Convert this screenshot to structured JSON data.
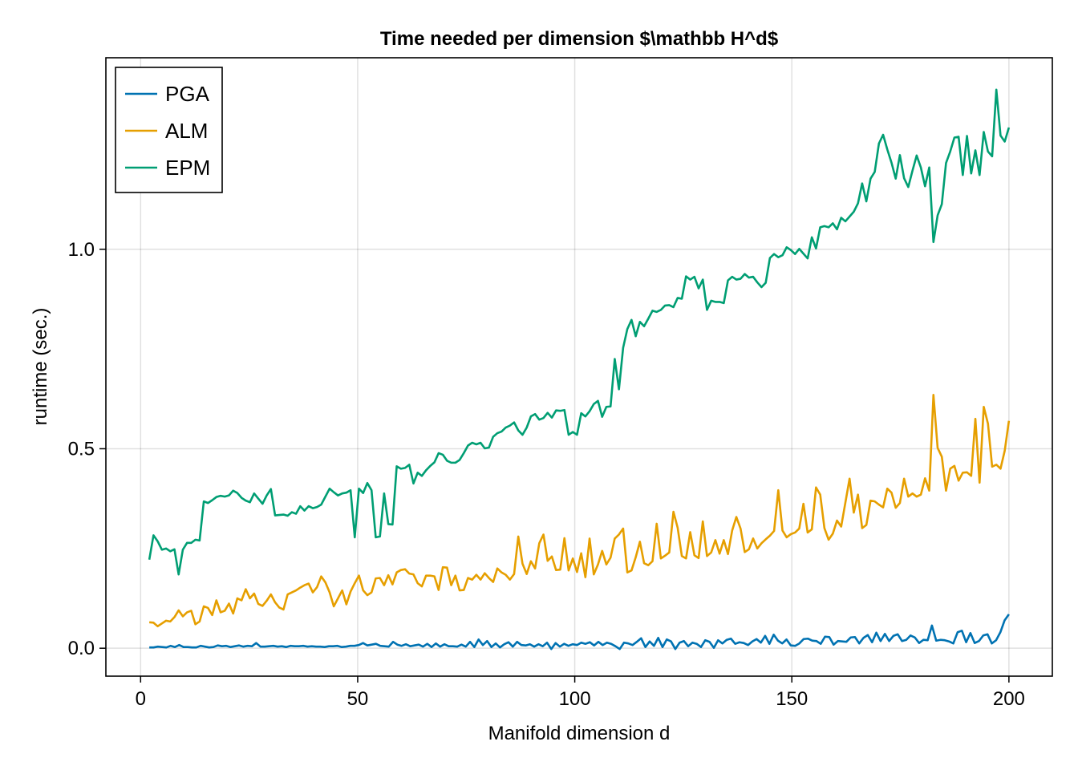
{
  "chart_data": {
    "type": "line",
    "title": "Time needed per dimension $\\mathbb H^d$",
    "xlabel": "Manifold dimension d",
    "ylabel": "runtime (sec.)",
    "xlim": [
      -8,
      210
    ],
    "ylim": [
      -0.07,
      1.48
    ],
    "xticks": [
      0,
      50,
      100,
      150,
      200
    ],
    "xtick_labels": [
      "0",
      "50",
      "100",
      "150",
      "200"
    ],
    "yticks": [
      0.0,
      0.5,
      1.0
    ],
    "ytick_labels": [
      "0.0",
      "0.5",
      "1.0"
    ],
    "grid": true,
    "legend_position": "top-left",
    "x_start": 2,
    "x_end": 200,
    "series": [
      {
        "name": "PGA",
        "color": "#0072b2",
        "values": [
          0.002,
          0.002,
          0.004,
          0.003,
          0.002,
          0.006,
          0.003,
          0.008,
          0.003,
          0.003,
          0.002,
          0.002,
          0.006,
          0.004,
          0.002,
          0.003,
          0.007,
          0.005,
          0.006,
          0.003,
          0.005,
          0.007,
          0.004,
          0.006,
          0.005,
          0.013,
          0.004,
          0.004,
          0.005,
          0.006,
          0.004,
          0.005,
          0.003,
          0.006,
          0.005,
          0.005,
          0.006,
          0.004,
          0.005,
          0.004,
          0.004,
          0.003,
          0.005,
          0.005,
          0.006,
          0.003,
          0.004,
          0.006,
          0.006,
          0.008,
          0.013,
          0.007,
          0.009,
          0.011,
          0.006,
          0.005,
          0.004,
          0.016,
          0.009,
          0.006,
          0.01,
          0.005,
          0.007,
          0.009,
          0.004,
          0.011,
          0.003,
          0.012,
          0.004,
          0.01,
          0.005,
          0.005,
          0.004,
          0.009,
          0.004,
          0.016,
          0.003,
          0.022,
          0.008,
          0.018,
          0.003,
          0.012,
          0.002,
          0.01,
          0.015,
          0.004,
          0.016,
          0.008,
          0.007,
          0.01,
          0.004,
          0.01,
          0.005,
          0.014,
          -0.002,
          0.013,
          0.004,
          0.011,
          0.006,
          0.01,
          0.008,
          0.014,
          0.011,
          0.015,
          0.007,
          0.016,
          0.008,
          0.014,
          0.011,
          0.005,
          -0.002,
          0.014,
          0.012,
          0.008,
          0.016,
          0.025,
          0.003,
          0.017,
          0.006,
          0.026,
          0.003,
          0.022,
          0.017,
          -0.002,
          0.014,
          0.018,
          0.005,
          0.014,
          0.011,
          0.003,
          0.02,
          0.016,
          0.001,
          0.02,
          0.012,
          0.021,
          0.024,
          0.011,
          0.015,
          0.013,
          0.008,
          0.017,
          0.023,
          0.014,
          0.031,
          0.011,
          0.034,
          0.019,
          0.012,
          0.022,
          0.007,
          0.006,
          0.012,
          0.023,
          0.024,
          0.019,
          0.018,
          0.011,
          0.029,
          0.028,
          0.009,
          0.018,
          0.017,
          0.016,
          0.027,
          0.028,
          0.012,
          0.026,
          0.033,
          0.015,
          0.039,
          0.018,
          0.036,
          0.018,
          0.031,
          0.035,
          0.018,
          0.021,
          0.032,
          0.027,
          0.013,
          0.021,
          0.02,
          0.057,
          0.019,
          0.021,
          0.02,
          0.017,
          0.012,
          0.04,
          0.044,
          0.015,
          0.038,
          0.013,
          0.018,
          0.032,
          0.035,
          0.012,
          0.02,
          0.04,
          0.07,
          0.085
        ]
      },
      {
        "name": "ALM",
        "color": "#e69f00",
        "values": [
          0.065,
          0.064,
          0.055,
          0.062,
          0.069,
          0.067,
          0.078,
          0.095,
          0.08,
          0.09,
          0.094,
          0.06,
          0.067,
          0.105,
          0.101,
          0.083,
          0.12,
          0.09,
          0.094,
          0.112,
          0.087,
          0.125,
          0.12,
          0.148,
          0.125,
          0.137,
          0.111,
          0.106,
          0.119,
          0.135,
          0.115,
          0.102,
          0.097,
          0.135,
          0.14,
          0.145,
          0.152,
          0.158,
          0.162,
          0.14,
          0.153,
          0.18,
          0.165,
          0.14,
          0.105,
          0.125,
          0.145,
          0.11,
          0.142,
          0.163,
          0.182,
          0.145,
          0.133,
          0.14,
          0.175,
          0.176,
          0.158,
          0.183,
          0.16,
          0.19,
          0.196,
          0.198,
          0.187,
          0.185,
          0.163,
          0.155,
          0.182,
          0.182,
          0.18,
          0.146,
          0.203,
          0.202,
          0.158,
          0.182,
          0.145,
          0.146,
          0.176,
          0.172,
          0.184,
          0.172,
          0.188,
          0.176,
          0.166,
          0.2,
          0.19,
          0.184,
          0.172,
          0.186,
          0.28,
          0.212,
          0.186,
          0.218,
          0.2,
          0.263,
          0.285,
          0.219,
          0.23,
          0.196,
          0.197,
          0.276,
          0.195,
          0.225,
          0.191,
          0.238,
          0.178,
          0.275,
          0.185,
          0.21,
          0.244,
          0.21,
          0.227,
          0.275,
          0.285,
          0.3,
          0.19,
          0.195,
          0.228,
          0.267,
          0.213,
          0.208,
          0.218,
          0.312,
          0.225,
          0.232,
          0.24,
          0.342,
          0.302,
          0.231,
          0.225,
          0.291,
          0.233,
          0.226,
          0.318,
          0.231,
          0.24,
          0.271,
          0.237,
          0.271,
          0.236,
          0.295,
          0.329,
          0.3,
          0.241,
          0.248,
          0.275,
          0.25,
          0.263,
          0.273,
          0.282,
          0.294,
          0.396,
          0.295,
          0.278,
          0.286,
          0.29,
          0.3,
          0.362,
          0.29,
          0.298,
          0.403,
          0.385,
          0.301,
          0.272,
          0.287,
          0.32,
          0.305,
          0.365,
          0.425,
          0.34,
          0.385,
          0.301,
          0.309,
          0.37,
          0.368,
          0.36,
          0.353,
          0.4,
          0.39,
          0.352,
          0.364,
          0.425,
          0.38,
          0.388,
          0.38,
          0.385,
          0.426,
          0.395,
          0.635,
          0.502,
          0.48,
          0.395,
          0.45,
          0.457,
          0.42,
          0.44,
          0.441,
          0.432,
          0.575,
          0.415,
          0.605,
          0.563,
          0.455,
          0.46,
          0.45,
          0.495,
          0.57
        ]
      },
      {
        "name": "EPM",
        "color": "#009e73",
        "values": [
          0.222,
          0.283,
          0.268,
          0.247,
          0.25,
          0.243,
          0.248,
          0.185,
          0.247,
          0.264,
          0.264,
          0.272,
          0.27,
          0.368,
          0.364,
          0.371,
          0.379,
          0.382,
          0.38,
          0.383,
          0.395,
          0.389,
          0.377,
          0.37,
          0.366,
          0.388,
          0.375,
          0.362,
          0.383,
          0.399,
          0.333,
          0.334,
          0.335,
          0.332,
          0.341,
          0.337,
          0.356,
          0.345,
          0.356,
          0.351,
          0.354,
          0.36,
          0.38,
          0.4,
          0.391,
          0.383,
          0.388,
          0.39,
          0.396,
          0.278,
          0.4,
          0.389,
          0.414,
          0.396,
          0.278,
          0.28,
          0.388,
          0.311,
          0.31,
          0.456,
          0.45,
          0.452,
          0.46,
          0.413,
          0.44,
          0.432,
          0.446,
          0.457,
          0.466,
          0.489,
          0.485,
          0.47,
          0.465,
          0.465,
          0.472,
          0.489,
          0.508,
          0.515,
          0.511,
          0.515,
          0.501,
          0.503,
          0.53,
          0.539,
          0.543,
          0.553,
          0.558,
          0.566,
          0.546,
          0.535,
          0.553,
          0.581,
          0.587,
          0.573,
          0.577,
          0.59,
          0.578,
          0.596,
          0.595,
          0.597,
          0.535,
          0.542,
          0.535,
          0.589,
          0.581,
          0.594,
          0.612,
          0.62,
          0.58,
          0.605,
          0.606,
          0.725,
          0.649,
          0.753,
          0.8,
          0.823,
          0.782,
          0.818,
          0.807,
          0.826,
          0.846,
          0.843,
          0.848,
          0.859,
          0.86,
          0.855,
          0.878,
          0.876,
          0.932,
          0.924,
          0.931,
          0.902,
          0.924,
          0.848,
          0.871,
          0.868,
          0.868,
          0.865,
          0.922,
          0.931,
          0.924,
          0.926,
          0.938,
          0.929,
          0.931,
          0.917,
          0.905,
          0.916,
          0.978,
          0.988,
          0.98,
          0.985,
          1.005,
          0.998,
          0.988,
          1.001,
          0.989,
          0.977,
          1.03,
          1.002,
          1.055,
          1.058,
          1.055,
          1.065,
          1.05,
          1.079,
          1.07,
          1.082,
          1.094,
          1.115,
          1.165,
          1.12,
          1.177,
          1.194,
          1.265,
          1.287,
          1.25,
          1.217,
          1.177,
          1.236,
          1.178,
          1.156,
          1.197,
          1.235,
          1.205,
          1.158,
          1.205,
          1.018,
          1.085,
          1.113,
          1.216,
          1.245,
          1.28,
          1.282,
          1.186,
          1.284,
          1.19,
          1.248,
          1.186,
          1.294,
          1.245,
          1.233,
          1.4,
          1.285,
          1.27,
          1.305
        ]
      }
    ]
  }
}
